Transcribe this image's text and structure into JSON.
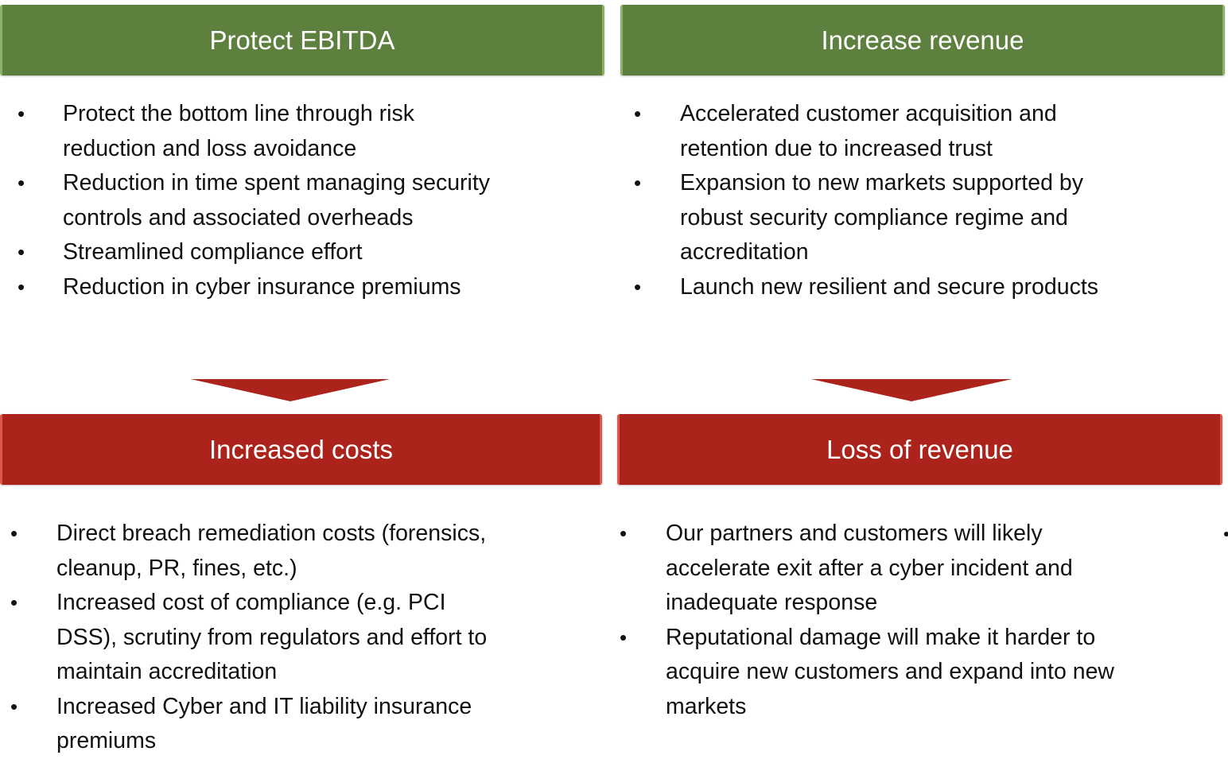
{
  "colors": {
    "positive": "#5e803e",
    "negative": "#ac231b"
  },
  "panels": [
    {
      "title": "Protect EBITDA",
      "tone": "positive",
      "items": [
        [
          "Protect the bottom line through risk",
          "reduction and loss avoidance"
        ],
        [
          "Reduction in time spent managing security",
          "controls and associated overheads"
        ],
        [
          "Streamlined compliance effort"
        ],
        [
          "Reduction in cyber insurance premiums"
        ]
      ]
    },
    {
      "title": "Increase revenue",
      "tone": "positive",
      "items": [
        [
          "Accelerated customer acquisition and",
          "retention due to increased trust"
        ],
        [
          "Expansion to new markets supported by",
          "robust security compliance regime and",
          "accreditation"
        ],
        [
          "Launch new resilient and secure products"
        ]
      ]
    },
    {
      "title": "Increased costs",
      "tone": "negative",
      "items": [
        [
          "Direct breach remediation costs (forensics,",
          "cleanup, PR, fines, etc.)"
        ],
        [
          "Increased cost of compliance (e.g. PCI",
          "DSS), scrutiny from regulators and effort to",
          "maintain accreditation"
        ],
        [
          "Increased Cyber and IT liability insurance",
          "premiums"
        ]
      ]
    },
    {
      "title": "Loss of revenue",
      "tone": "negative",
      "items": [
        [
          "Our partners and customers will likely",
          "accelerate exit after a cyber incident and",
          "inadequate response"
        ],
        [
          "Reputational damage will make it harder to",
          "acquire new customers and expand into new",
          "markets"
        ]
      ]
    }
  ],
  "bullet": "•"
}
